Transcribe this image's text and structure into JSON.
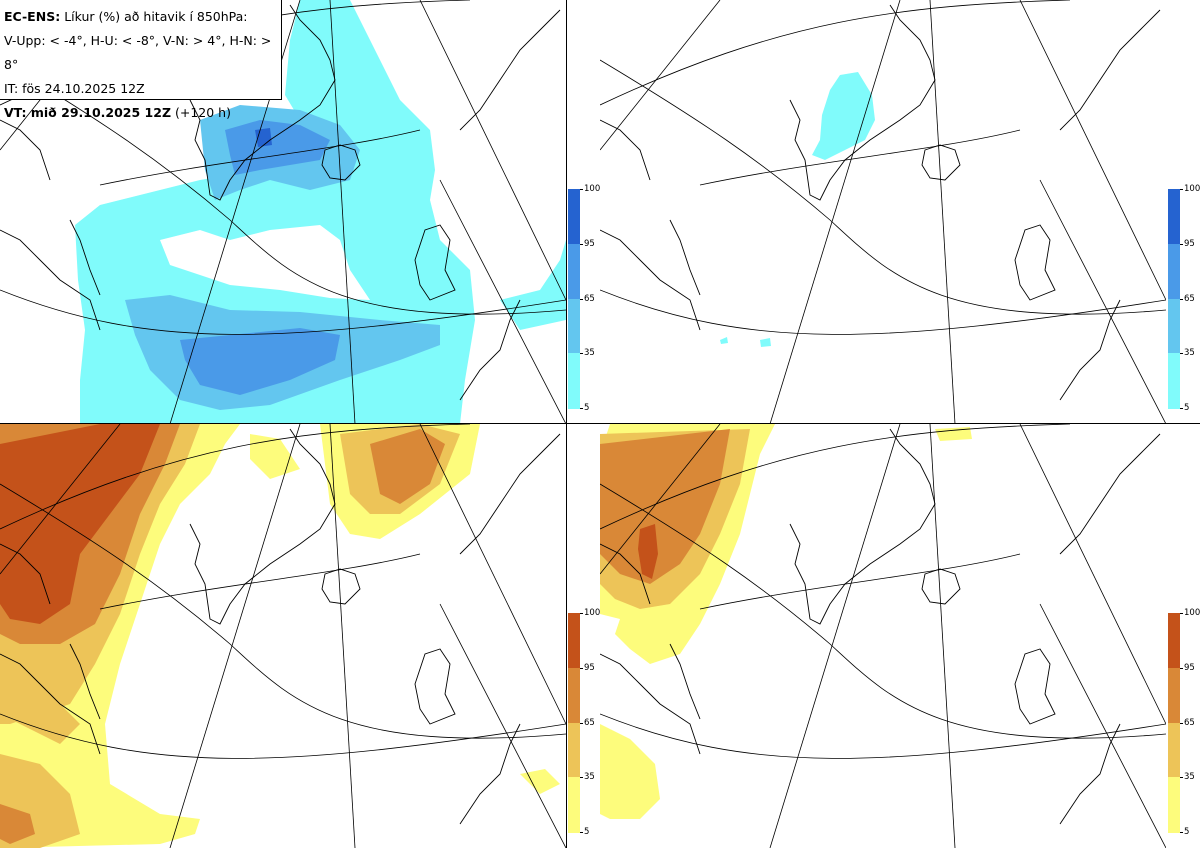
{
  "header": {
    "model": "EC-ENS:",
    "title": "Líkur (%) að hitavik í 850hPa:",
    "thresholds": "V-Upp: < -4°, H-U: < -8°, V-N: > 4°, H-N: > 8°",
    "init_time": "IT: fös 24.10.2025 12Z",
    "valid_label": "VT: mið 29.10.2025 12Z",
    "lead": "(+120 h)"
  },
  "colorbars": {
    "cold": {
      "ticks": [
        "100",
        "95",
        "65",
        "35",
        "5"
      ],
      "colors": [
        "#2563d0",
        "#4a9ae8",
        "#63c6ef",
        "#80fbfb"
      ]
    },
    "warm": {
      "ticks": [
        "100",
        "95",
        "65",
        "35",
        "5"
      ],
      "colors": [
        "#c4521a",
        "#d98837",
        "#edc458",
        "#fdfc7c"
      ]
    }
  },
  "panels": [
    {
      "id": "V-Upp",
      "colorbar": "cold"
    },
    {
      "id": "H-U",
      "colorbar": "cold"
    },
    {
      "id": "V-N",
      "colorbar": "warm"
    },
    {
      "id": "H-N",
      "colorbar": "warm"
    }
  ]
}
